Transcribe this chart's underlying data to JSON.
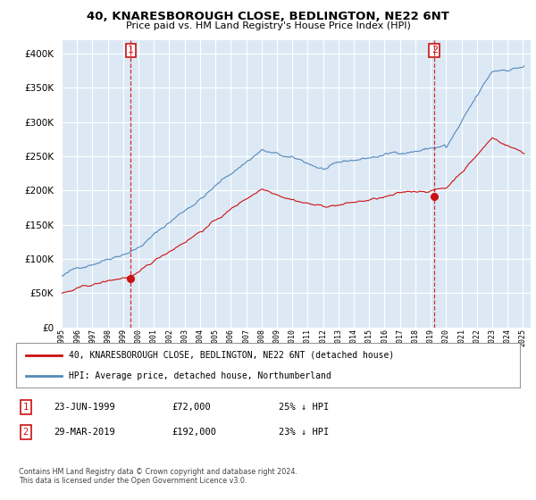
{
  "title": "40, KNARESBOROUGH CLOSE, BEDLINGTON, NE22 6NT",
  "subtitle": "Price paid vs. HM Land Registry's House Price Index (HPI)",
  "ylim": [
    0,
    420000
  ],
  "yticks": [
    0,
    50000,
    100000,
    150000,
    200000,
    250000,
    300000,
    350000,
    400000
  ],
  "background_color": "#ffffff",
  "plot_bg_color": "#dce9f5",
  "grid_color": "#ffffff",
  "hpi_color": "#5588bb",
  "price_color": "#cc1111",
  "legend_entries": [
    "40, KNARESBOROUGH CLOSE, BEDLINGTON, NE22 6NT (detached house)",
    "HPI: Average price, detached house, Northumberland"
  ],
  "table_rows": [
    {
      "num": "1",
      "date": "23-JUN-1999",
      "price": "£72,000",
      "pct": "25% ↓ HPI"
    },
    {
      "num": "2",
      "date": "29-MAR-2019",
      "price": "£192,000",
      "pct": "23% ↓ HPI"
    }
  ],
  "footer": "Contains HM Land Registry data © Crown copyright and database right 2024.\nThis data is licensed under the Open Government Licence v3.0.",
  "marker1_year_idx": 4,
  "marker2_year_idx": 24,
  "marker1_price": 72000,
  "marker2_price": 192000,
  "x_years": [
    "1995",
    "1996",
    "1997",
    "1998",
    "1999",
    "2000",
    "2001",
    "2002",
    "2003",
    "2004",
    "2005",
    "2006",
    "2007",
    "2008",
    "2009",
    "2010",
    "2011",
    "2012",
    "2013",
    "2014",
    "2015",
    "2016",
    "2017",
    "2018",
    "2019",
    "2020",
    "2021",
    "2022",
    "2023",
    "2024",
    "2025"
  ]
}
